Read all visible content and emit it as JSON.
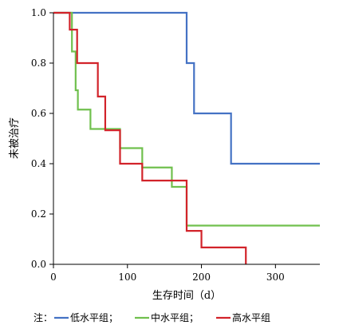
{
  "chart_data": {
    "type": "line",
    "step": true,
    "xlabel": "生存时间（d）",
    "ylabel": "未被治疗",
    "xlim": [
      0,
      360
    ],
    "ylim": [
      0,
      1.0
    ],
    "xticks": [
      "0",
      "100",
      "200",
      "300"
    ],
    "yticks": [
      "0.0",
      "0.2",
      "0.4",
      "0.6",
      "0.8",
      "1.0"
    ],
    "grid": false,
    "series": [
      {
        "name": "低水平组",
        "color": "#4472c4",
        "x": [
          0,
          180,
          190,
          240,
          360
        ],
        "y": [
          1.0,
          0.8,
          0.6,
          0.4,
          0.4
        ]
      },
      {
        "name": "中水平组",
        "color": "#70c04e",
        "x": [
          0,
          25,
          30,
          33,
          50,
          90,
          120,
          160,
          180,
          360
        ],
        "y": [
          1.0,
          0.846,
          0.692,
          0.615,
          0.538,
          0.462,
          0.385,
          0.308,
          0.154,
          0.154
        ]
      },
      {
        "name": "高水平组",
        "color": "#d2232a",
        "x": [
          0,
          22,
          32,
          60,
          70,
          90,
          120,
          180,
          200,
          260
        ],
        "y": [
          1.0,
          0.933,
          0.8,
          0.667,
          0.533,
          0.4,
          0.333,
          0.133,
          0.067,
          0.0
        ]
      }
    ],
    "legend": {
      "prefix": "注：",
      "entries": [
        "低水平组；",
        "中水平组；",
        "高水平组"
      ],
      "placement": "bottom"
    }
  }
}
